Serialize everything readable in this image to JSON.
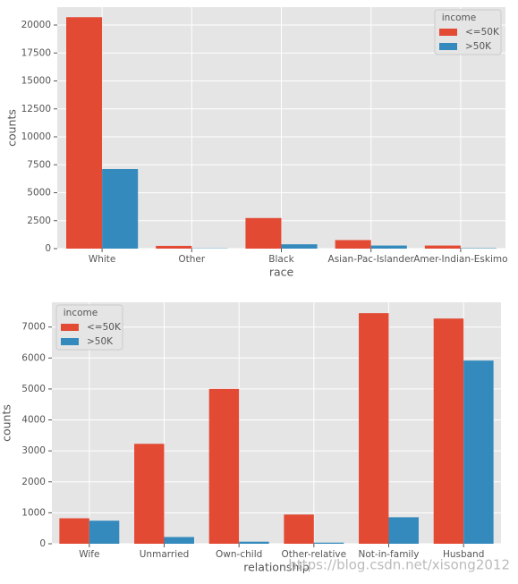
{
  "chart_data": [
    {
      "type": "bar",
      "xlabel": "race",
      "ylabel": "counts",
      "categories": [
        "White",
        "Other",
        "Black",
        "Asian-Pac-Islander",
        "Amer-Indian-Eskimo"
      ],
      "series": [
        {
          "name": "<=50K",
          "color": "#E24A33",
          "values": [
            20700,
            246,
            2737,
            763,
            275
          ]
        },
        {
          "name": ">50K",
          "color": "#348ABD",
          "values": [
            7120,
            25,
            387,
            276,
            36
          ]
        }
      ],
      "ylim": [
        0,
        21600
      ],
      "yticks": [
        0,
        2500,
        5000,
        7500,
        10000,
        12500,
        15000,
        17500,
        20000
      ],
      "grid": true,
      "legend_title": "income",
      "legend": "upper-right"
    },
    {
      "type": "bar",
      "xlabel": "relationship",
      "ylabel": "counts",
      "categories": [
        "Wife",
        "Unmarried",
        "Own-child",
        "Other-relative",
        "Not-in-family",
        "Husband"
      ],
      "series": [
        {
          "name": "<=50K",
          "color": "#E24A33",
          "values": [
            823,
            3228,
            5001,
            944,
            7449,
            7275
          ]
        },
        {
          "name": ">50K",
          "color": "#348ABD",
          "values": [
            745,
            218,
            67,
            37,
            856,
            5918
          ]
        }
      ],
      "ylim": [
        0,
        7800
      ],
      "yticks": [
        0,
        1000,
        2000,
        3000,
        4000,
        5000,
        6000,
        7000
      ],
      "grid": true,
      "legend_title": "income",
      "legend": "upper-left"
    }
  ],
  "watermark": "https://blog.csdn.net/xisong2012"
}
